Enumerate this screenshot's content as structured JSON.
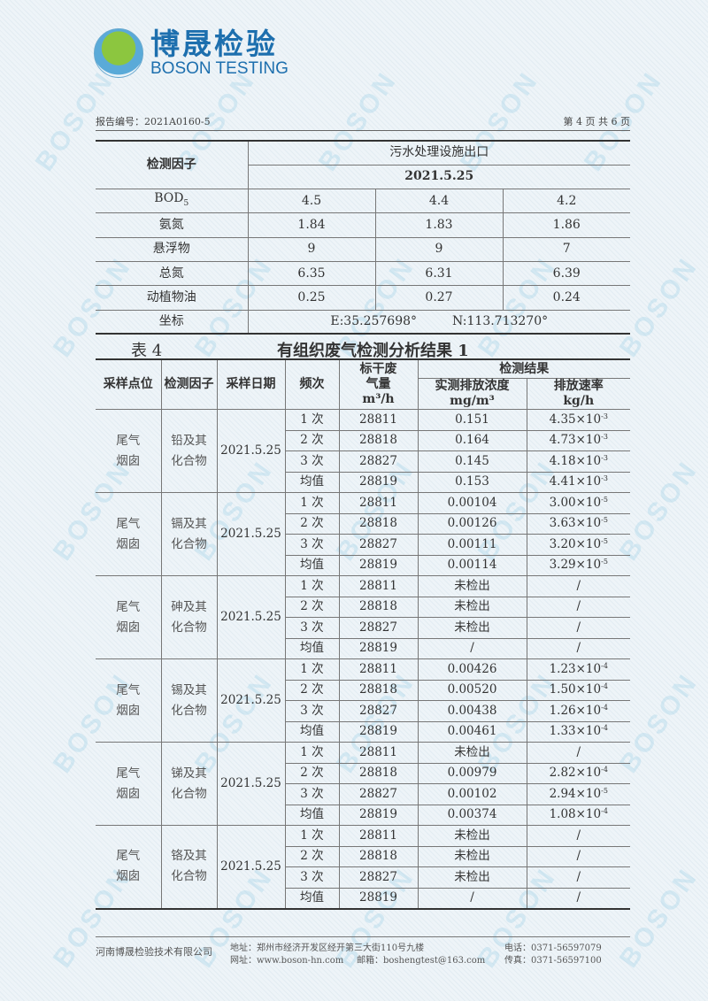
{
  "logo": {
    "cn": "博晟检验",
    "en": "BOSON TESTING",
    "watermark": "BOSON"
  },
  "meta": {
    "report_no": "报告编号：2021A0160-5",
    "page": "第 4 页 共 6 页"
  },
  "table1": {
    "factor_header": "检测因子",
    "location": "污水处理设施出口",
    "date": "2021.5.25",
    "rows": [
      {
        "name": "BOD",
        "sub": "5",
        "v": [
          "4.5",
          "4.4",
          "4.2"
        ]
      },
      {
        "name": "氨氮",
        "v": [
          "1.84",
          "1.83",
          "1.86"
        ]
      },
      {
        "name": "悬浮物",
        "v": [
          "9",
          "9",
          "7"
        ]
      },
      {
        "name": "总氮",
        "v": [
          "6.35",
          "6.31",
          "6.39"
        ]
      },
      {
        "name": "动植物油",
        "v": [
          "0.25",
          "0.27",
          "0.24"
        ]
      }
    ],
    "coord_label": "坐标",
    "coord_e": "E:35.257698°",
    "coord_n": "N:113.713270°"
  },
  "table2": {
    "number": "表 4",
    "title": "有组织废气检测分析结果 1",
    "headers": {
      "point": "采样点位",
      "factor": "检测因子",
      "date": "采样日期",
      "freq": "频次",
      "flow": "标干废气量",
      "flow_unit": "m³/h",
      "result": "检测结果",
      "conc": "实测排放浓度",
      "conc_unit": "mg/m³",
      "rate": "排放速率",
      "rate_unit": "kg/h"
    },
    "groups": [
      {
        "point": "尾气烟囱",
        "factor": "铅及其化合物",
        "date": "2021.5.25",
        "rows": [
          [
            "1 次",
            "28811",
            "0.151",
            "4.35×10",
            "-3"
          ],
          [
            "2 次",
            "28818",
            "0.164",
            "4.73×10",
            "-3"
          ],
          [
            "3 次",
            "28827",
            "0.145",
            "4.18×10",
            "-3"
          ],
          [
            "均值",
            "28819",
            "0.153",
            "4.41×10",
            "-3"
          ]
        ]
      },
      {
        "point": "尾气烟囱",
        "factor": "镉及其化合物",
        "date": "2021.5.25",
        "rows": [
          [
            "1 次",
            "28811",
            "0.00104",
            "3.00×10",
            "-5"
          ],
          [
            "2 次",
            "28818",
            "0.00126",
            "3.63×10",
            "-5"
          ],
          [
            "3 次",
            "28827",
            "0.00111",
            "3.20×10",
            "-5"
          ],
          [
            "均值",
            "28819",
            "0.00114",
            "3.29×10",
            "-5"
          ]
        ]
      },
      {
        "point": "尾气烟囱",
        "factor": "砷及其化合物",
        "date": "2021.5.25",
        "rows": [
          [
            "1 次",
            "28811",
            "未检出",
            "/",
            ""
          ],
          [
            "2 次",
            "28818",
            "未检出",
            "/",
            ""
          ],
          [
            "3 次",
            "28827",
            "未检出",
            "/",
            ""
          ],
          [
            "均值",
            "28819",
            "/",
            "/",
            ""
          ]
        ]
      },
      {
        "point": "尾气烟囱",
        "factor": "锡及其化合物",
        "date": "2021.5.25",
        "rows": [
          [
            "1 次",
            "28811",
            "0.00426",
            "1.23×10",
            "-4"
          ],
          [
            "2 次",
            "28818",
            "0.00520",
            "1.50×10",
            "-4"
          ],
          [
            "3 次",
            "28827",
            "0.00438",
            "1.26×10",
            "-4"
          ],
          [
            "均值",
            "28819",
            "0.00461",
            "1.33×10",
            "-4"
          ]
        ]
      },
      {
        "point": "尾气烟囱",
        "factor": "锑及其化合物",
        "date": "2021.5.25",
        "rows": [
          [
            "1 次",
            "28811",
            "未检出",
            "/",
            ""
          ],
          [
            "2 次",
            "28818",
            "0.00979",
            "2.82×10",
            "-4"
          ],
          [
            "3 次",
            "28827",
            "0.00102",
            "2.94×10",
            "-5"
          ],
          [
            "均值",
            "28819",
            "0.00374",
            "1.08×10",
            "-4"
          ]
        ]
      },
      {
        "point": "尾气烟囱",
        "factor": "铬及其化合物",
        "date": "2021.5.25",
        "rows": [
          [
            "1 次",
            "28811",
            "未检出",
            "/",
            ""
          ],
          [
            "2 次",
            "28818",
            "未检出",
            "/",
            ""
          ],
          [
            "3 次",
            "28827",
            "未检出",
            "/",
            ""
          ],
          [
            "均值",
            "28819",
            "/",
            "/",
            ""
          ]
        ]
      }
    ]
  },
  "footer": {
    "company": "河南博晟检验技术有限公司",
    "address": "地址：郑州市经济开发区经开第三大街110号九楼",
    "website": "网址：www.boson-hn.com",
    "email": "邮箱：boshengtest@163.com",
    "phone": "电话：0371-56597079",
    "fax": "传真：0371-56597100"
  }
}
